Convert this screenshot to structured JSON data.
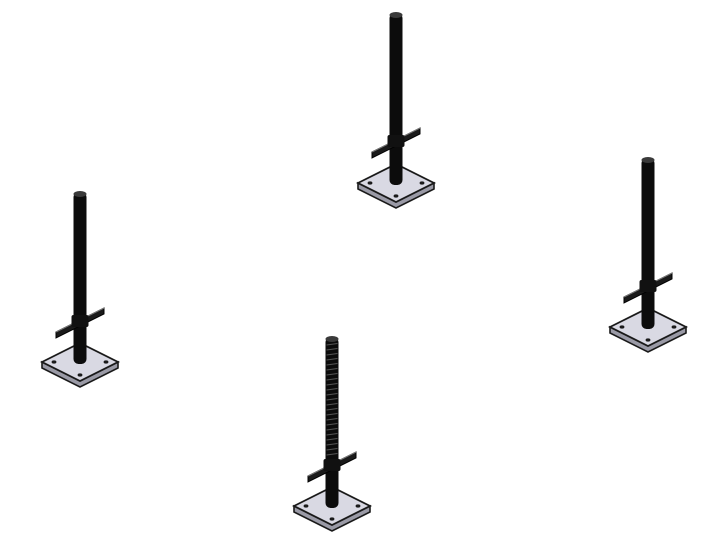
{
  "colors": {
    "background": "#ffffff",
    "post": "#0c0c0c",
    "post_highlight": "#3a3a3a",
    "base_plate_fill": "#d9d9e3",
    "base_plate_edge": "#1a1a1a",
    "plate_hole": "#1a1a1a"
  },
  "items": [
    {
      "name": "screw-jack-left",
      "kind": "adjustable-base-jack"
    },
    {
      "name": "screw-jack-back",
      "kind": "adjustable-base-jack"
    },
    {
      "name": "screw-jack-right",
      "kind": "adjustable-base-jack"
    },
    {
      "name": "screw-jack-front",
      "kind": "adjustable-base-jack",
      "threaded": true
    }
  ]
}
